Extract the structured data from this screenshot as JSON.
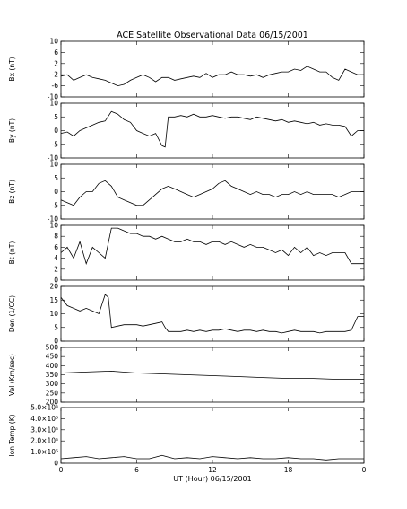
{
  "title": "ACE Satellite Observational Data   06/15/2001",
  "xlabel": "UT (Hour)   06/15/2001",
  "chart_data": [
    {
      "type": "line",
      "panel": "Bx",
      "ylabel": "Bx (nT)",
      "ylim": [
        -10,
        10
      ],
      "yticks": [
        "10",
        "6",
        "2",
        "-2",
        "-6",
        "-10"
      ],
      "ytick_values": [
        10,
        6,
        2,
        -2,
        -6,
        -10
      ],
      "series": [
        {
          "x": [
            0,
            0.5,
            1,
            1.5,
            2,
            2.5,
            3,
            3.5,
            4,
            4.5,
            5,
            5.5,
            6,
            6.5,
            7,
            7.5,
            8,
            8.5,
            9,
            9.5,
            10,
            10.5,
            11,
            11.5,
            12,
            12.5,
            13,
            13.5,
            14,
            14.5,
            15,
            15.5,
            16,
            16.5,
            17,
            17.5,
            18,
            18.5,
            19,
            19.5,
            20,
            20.5,
            21,
            21.5,
            22,
            22.5,
            23,
            23.5,
            24
          ],
          "y": [
            -2.5,
            -2,
            -4,
            -3,
            -2,
            -3,
            -3.5,
            -4,
            -5,
            -6,
            -5.5,
            -4,
            -3,
            -2,
            -3,
            -4.5,
            -3,
            -3,
            -4,
            -3.5,
            -3,
            -2.5,
            -3,
            -1.5,
            -3,
            -2,
            -2,
            -1,
            -2,
            -2,
            -2.5,
            -2,
            -3,
            -2,
            -1.5,
            -1,
            -1,
            0,
            -0.5,
            1,
            0,
            -1,
            -1,
            -3,
            -4,
            0,
            -1,
            -2,
            -2
          ]
        }
      ]
    },
    {
      "type": "line",
      "panel": "By",
      "ylabel": "By (nT)",
      "ylim": [
        -10,
        10
      ],
      "yticks": [
        "10",
        "5",
        "0",
        "-5",
        "-10"
      ],
      "ytick_values": [
        10,
        5,
        0,
        -5,
        -10
      ],
      "series": [
        {
          "x": [
            0,
            0.5,
            1,
            1.5,
            2,
            2.5,
            3,
            3.5,
            4,
            4.5,
            5,
            5.5,
            6,
            6.5,
            7,
            7.5,
            8,
            8.25,
            8.5,
            9,
            9.5,
            10,
            10.5,
            11,
            11.5,
            12,
            12.5,
            13,
            13.5,
            14,
            14.5,
            15,
            15.5,
            16,
            16.5,
            17,
            17.5,
            18,
            18.5,
            19,
            19.5,
            20,
            20.5,
            21,
            21.5,
            22,
            22.5,
            23,
            23.5,
            24
          ],
          "y": [
            -1,
            -0.5,
            -2,
            0,
            1,
            2,
            3,
            3.5,
            7,
            6,
            4,
            3,
            0,
            -1,
            -2,
            -1,
            -5.5,
            -6,
            5,
            5,
            5.5,
            5,
            6,
            5,
            5,
            5.5,
            5,
            4.5,
            5,
            5,
            4.5,
            4,
            5,
            4.5,
            4,
            3.5,
            4,
            3,
            3.5,
            3,
            2.5,
            3,
            2,
            2.5,
            2,
            2,
            1.5,
            -2,
            0,
            0
          ]
        }
      ]
    },
    {
      "type": "line",
      "panel": "Bz",
      "ylabel": "Bz (nT)",
      "ylim": [
        -10,
        10
      ],
      "yticks": [
        "10",
        "5",
        "0",
        "-5",
        "-10"
      ],
      "ytick_values": [
        10,
        5,
        0,
        -5,
        -10
      ],
      "series": [
        {
          "x": [
            0,
            0.5,
            1,
            1.5,
            2,
            2.5,
            3,
            3.5,
            4,
            4.5,
            5,
            5.5,
            6,
            6.5,
            7,
            7.5,
            8,
            8.5,
            9,
            9.5,
            10,
            10.5,
            11,
            11.5,
            12,
            12.5,
            13,
            13.5,
            14,
            14.5,
            15,
            15.5,
            16,
            16.5,
            17,
            17.5,
            18,
            18.5,
            19,
            19.5,
            20,
            20.5,
            21,
            21.5,
            22,
            22.5,
            23,
            23.5,
            24
          ],
          "y": [
            -3,
            -4,
            -5,
            -2,
            0,
            0,
            3,
            4,
            2,
            -2,
            -3,
            -4,
            -5,
            -5,
            -3,
            -1,
            1,
            2,
            1,
            0,
            -1,
            -2,
            -1,
            0,
            1,
            3,
            4,
            2,
            1,
            0,
            -1,
            0,
            -1,
            -1,
            -2,
            -1,
            -1,
            0,
            -1,
            0,
            -1,
            -1,
            -1,
            -1,
            -2,
            -1,
            0,
            0,
            0
          ]
        }
      ]
    },
    {
      "type": "line",
      "panel": "Bt",
      "ylabel": "Bt (nT)",
      "ylim": [
        0,
        10
      ],
      "yticks": [
        "10",
        "8",
        "6",
        "4",
        "2",
        "0"
      ],
      "ytick_values": [
        10,
        8,
        6,
        4,
        2,
        0
      ],
      "series": [
        {
          "x": [
            0,
            0.5,
            1,
            1.5,
            2,
            2.5,
            3,
            3.5,
            4,
            4.5,
            5,
            5.5,
            6,
            6.5,
            7,
            7.5,
            8,
            8.5,
            9,
            9.5,
            10,
            10.5,
            11,
            11.5,
            12,
            12.5,
            13,
            13.5,
            14,
            14.5,
            15,
            15.5,
            16,
            16.5,
            17,
            17.5,
            18,
            18.5,
            19,
            19.5,
            20,
            20.5,
            21,
            21.5,
            22,
            22.5,
            23,
            23.5,
            24
          ],
          "y": [
            5,
            6,
            4,
            7,
            3,
            6,
            5,
            4,
            9.5,
            9.5,
            9,
            8.5,
            8.5,
            8,
            8,
            7.5,
            8,
            7.5,
            7,
            7,
            7.5,
            7,
            7,
            6.5,
            7,
            7,
            6.5,
            7,
            6.5,
            6,
            6.5,
            6,
            6,
            5.5,
            5,
            5.5,
            4.5,
            6,
            5,
            6,
            4.5,
            5,
            4.5,
            5,
            5,
            5,
            3,
            3,
            3
          ]
        }
      ]
    },
    {
      "type": "line",
      "panel": "Den",
      "ylabel": "Den (1/CC)",
      "ylim": [
        0,
        20
      ],
      "yticks": [
        "20",
        "15",
        "10",
        "5",
        "0"
      ],
      "ytick_values": [
        20,
        15,
        10,
        5,
        0
      ],
      "series": [
        {
          "x": [
            0,
            0.5,
            1,
            1.5,
            2,
            2.5,
            3,
            3.5,
            3.75,
            4,
            4.5,
            5,
            5.5,
            6,
            6.5,
            7,
            7.5,
            8,
            8.25,
            8.5,
            9,
            9.5,
            10,
            10.5,
            11,
            11.5,
            12,
            12.5,
            13,
            13.5,
            14,
            14.5,
            15,
            15.5,
            16,
            16.5,
            17,
            17.5,
            18,
            18.5,
            19,
            19.5,
            20,
            20.5,
            21,
            21.5,
            22,
            22.5,
            23,
            23.5,
            24
          ],
          "y": [
            16,
            13,
            12,
            11,
            12,
            11,
            10,
            17,
            16,
            5,
            5.5,
            6,
            6,
            6,
            5.5,
            6,
            6.5,
            7,
            5,
            3.5,
            3.5,
            3.5,
            4,
            3.5,
            4,
            3.5,
            4,
            4,
            4.5,
            4,
            3.5,
            4,
            4,
            3.5,
            4,
            3.5,
            3.5,
            3,
            3.5,
            4,
            3.5,
            3.5,
            3.5,
            3,
            3.5,
            3.5,
            3.5,
            3.5,
            4,
            9,
            9
          ]
        }
      ]
    },
    {
      "type": "line",
      "panel": "Vel",
      "ylabel": "Vel (Km/sec)",
      "ylim": [
        200,
        500
      ],
      "yticks": [
        "500",
        "450",
        "400",
        "350",
        "300",
        "250",
        "200"
      ],
      "ytick_values": [
        500,
        450,
        400,
        350,
        300,
        250,
        200
      ],
      "series": [
        {
          "x": [
            0,
            2,
            4,
            6,
            8,
            10,
            12,
            14,
            16,
            18,
            20,
            22,
            24
          ],
          "y": [
            360,
            365,
            370,
            360,
            355,
            350,
            345,
            340,
            335,
            330,
            330,
            325,
            325
          ]
        }
      ]
    },
    {
      "type": "line",
      "panel": "Temp",
      "ylabel": "Ion Temp (K)",
      "ylim": [
        0,
        500000
      ],
      "yticks": [
        "5.0×10⁵",
        "4.0×10⁵",
        "3.0×10⁵",
        "2.0×10⁵",
        "1.0×10⁵",
        "0"
      ],
      "ytick_values": [
        500000,
        400000,
        300000,
        200000,
        100000,
        0
      ],
      "series": [
        {
          "x": [
            0,
            1,
            2,
            3,
            4,
            5,
            6,
            7,
            8,
            9,
            10,
            11,
            12,
            13,
            14,
            15,
            16,
            17,
            18,
            19,
            20,
            21,
            22,
            23,
            24
          ],
          "y": [
            40000,
            50000,
            60000,
            40000,
            50000,
            60000,
            40000,
            40000,
            70000,
            40000,
            50000,
            40000,
            60000,
            50000,
            40000,
            50000,
            40000,
            40000,
            50000,
            40000,
            40000,
            30000,
            40000,
            40000,
            40000
          ]
        }
      ]
    }
  ],
  "xaxis": {
    "xlim": [
      0,
      24
    ],
    "ticks": [
      "0",
      "6",
      "12",
      "18",
      "0"
    ],
    "tick_values": [
      0,
      6,
      12,
      18,
      24
    ]
  }
}
